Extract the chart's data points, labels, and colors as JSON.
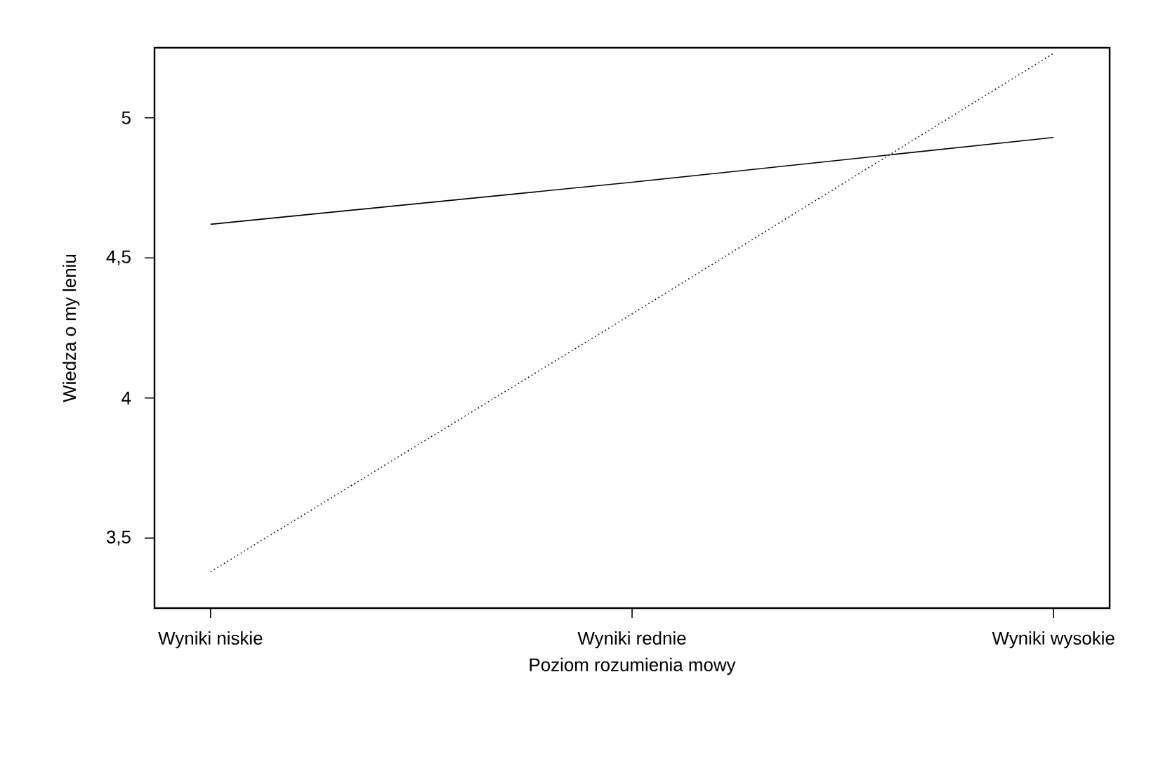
{
  "chart_data": {
    "type": "line",
    "xlabel": "Poziom rozumienia mowy",
    "ylabel": "Wiedza o my leniu",
    "categories": [
      "Wyniki niskie",
      "Wyniki   rednie",
      "Wyniki wysokie"
    ],
    "ylim": [
      3.25,
      5.25
    ],
    "yticks": [
      {
        "value": 3.5,
        "label": "3,5"
      },
      4,
      {
        "value": 4.5,
        "label": "4,5"
      },
      5
    ],
    "grid": false,
    "marker": "none",
    "series": [
      {
        "color": "#000000",
        "line_style": "solid",
        "values": [
          4.62,
          4.77,
          4.93
        ]
      },
      {
        "color": "#000000",
        "line_style": "dotted",
        "values": [
          3.38,
          4.3,
          5.23
        ]
      }
    ]
  }
}
